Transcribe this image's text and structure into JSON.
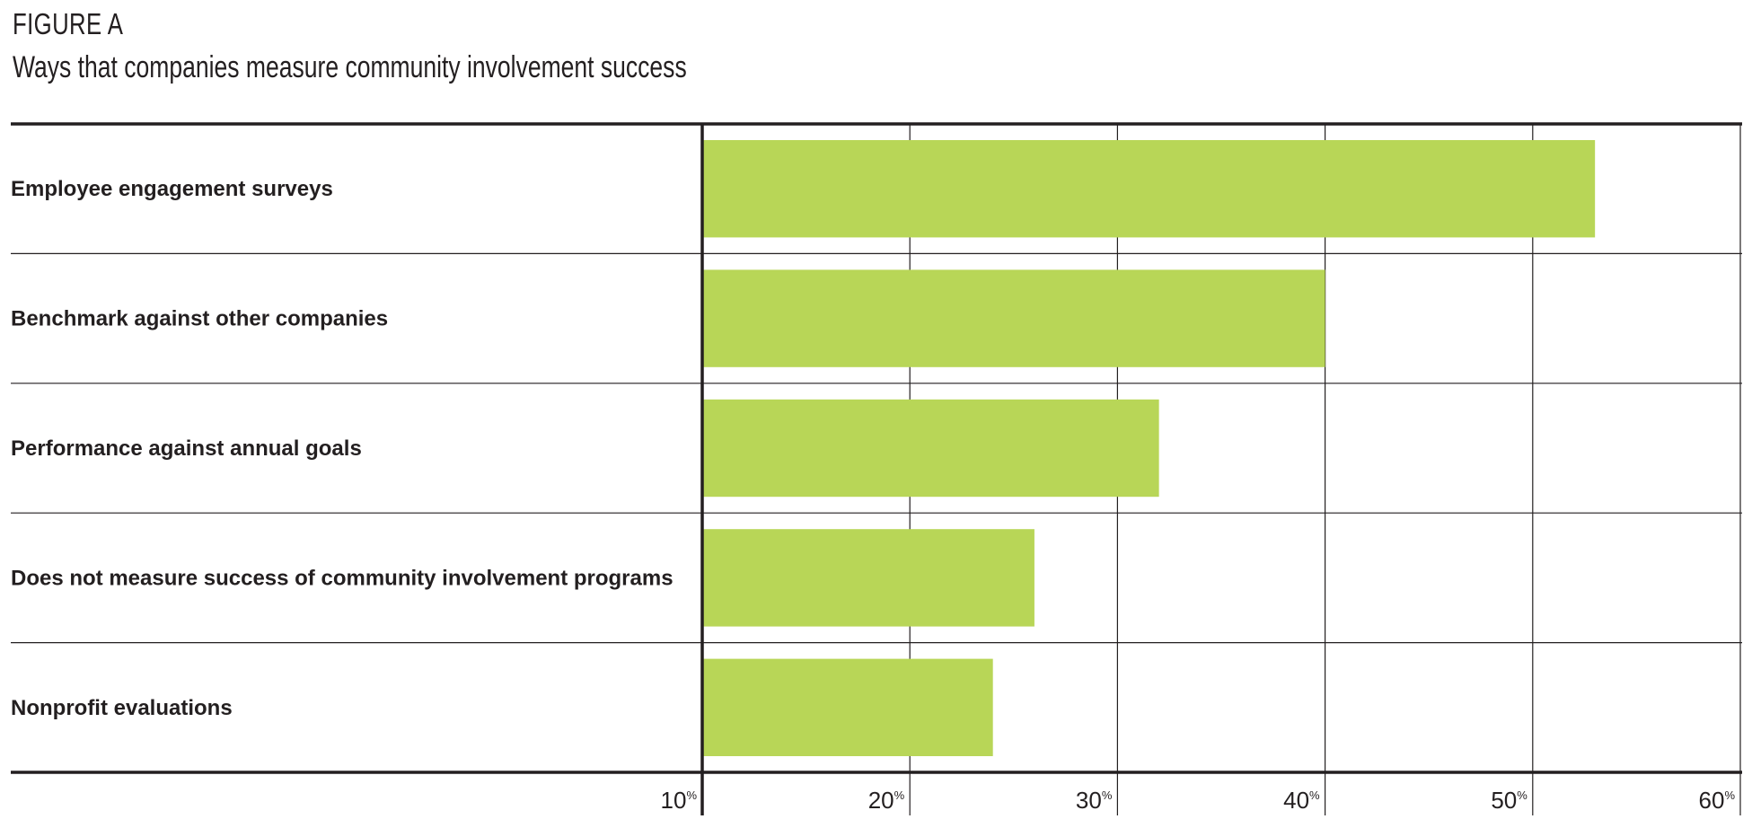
{
  "figure_label": "FIGURE A",
  "chart_data": {
    "type": "bar",
    "orientation": "horizontal",
    "title": "Ways that companies measure community involvement success",
    "categories": [
      "Employee engagement surveys",
      "Benchmark against other companies",
      "Performance against annual goals",
      "Does not measure success of community involvement programs",
      "Nonprofit evaluations"
    ],
    "values": [
      53,
      40,
      32,
      26,
      24
    ],
    "xlim": [
      10,
      60
    ],
    "ticks": [
      10,
      20,
      30,
      40,
      50,
      60
    ],
    "tick_suffix": "%",
    "grid": true,
    "bar_color": "#b8d657"
  }
}
